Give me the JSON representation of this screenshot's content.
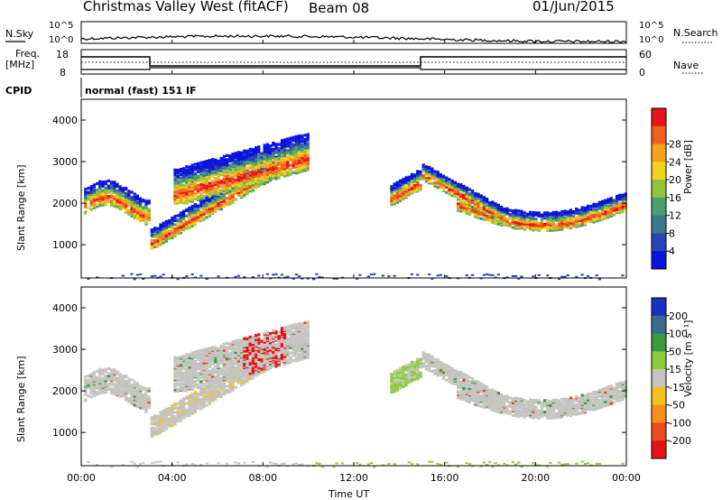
{
  "header": {
    "station": "Christmas Valley West (fitACF)",
    "beam": "Beam 08",
    "date": "01/Jun/2015"
  },
  "noise_panel": {
    "left_label": "N.Sky",
    "right_label": "N.Search",
    "top_tick": "10^5",
    "bottom_tick": "10^0"
  },
  "freq_panel": {
    "label_line1": "Freq.",
    "label_line2": "[MHz]",
    "left_ticks": [
      "18",
      "8"
    ],
    "right_ticks": [
      "60",
      "0"
    ],
    "right_label": "Nave"
  },
  "cpid": {
    "label": "CPID",
    "value": "normal (fast) 151 IF"
  },
  "chart_data": [
    {
      "type": "heatmap",
      "name": "power",
      "ylabel": "Slant Range [km]",
      "yticks": [
        "1000",
        "2000",
        "3000",
        "4000"
      ],
      "colorbar_label": "Power [dB]",
      "colorbar_ticks": [
        "4",
        "8",
        "12",
        "16",
        "20",
        "24",
        "28"
      ],
      "colors": [
        "#0a14dc",
        "#2845b5",
        "#3d7a8f",
        "#4aa06d",
        "#8fc43c",
        "#f2d21e",
        "#f7a21d",
        "#f0601d",
        "#e8141a"
      ]
    },
    {
      "type": "heatmap",
      "name": "velocity",
      "ylabel": "Slant Range [km]",
      "yticks": [
        "1000",
        "2000",
        "3000",
        "4000"
      ],
      "colorbar_label": "Velocity [m s⁻¹]",
      "colorbar_ticks": [
        "200",
        "100",
        "50",
        "15",
        "-15",
        "-50",
        "-100",
        "-200"
      ],
      "colors": [
        "#1a30c0",
        "#3a6a90",
        "#3c9a3c",
        "#8ccc3a",
        "#c4c4c0",
        "#f5c21c",
        "#f5901c",
        "#e84c1c",
        "#e41414"
      ]
    }
  ],
  "time_axis": {
    "label": "Time UT",
    "ticks": [
      "00:00",
      "04:00",
      "08:00",
      "12:00",
      "16:00",
      "20:00",
      "00:00"
    ]
  }
}
